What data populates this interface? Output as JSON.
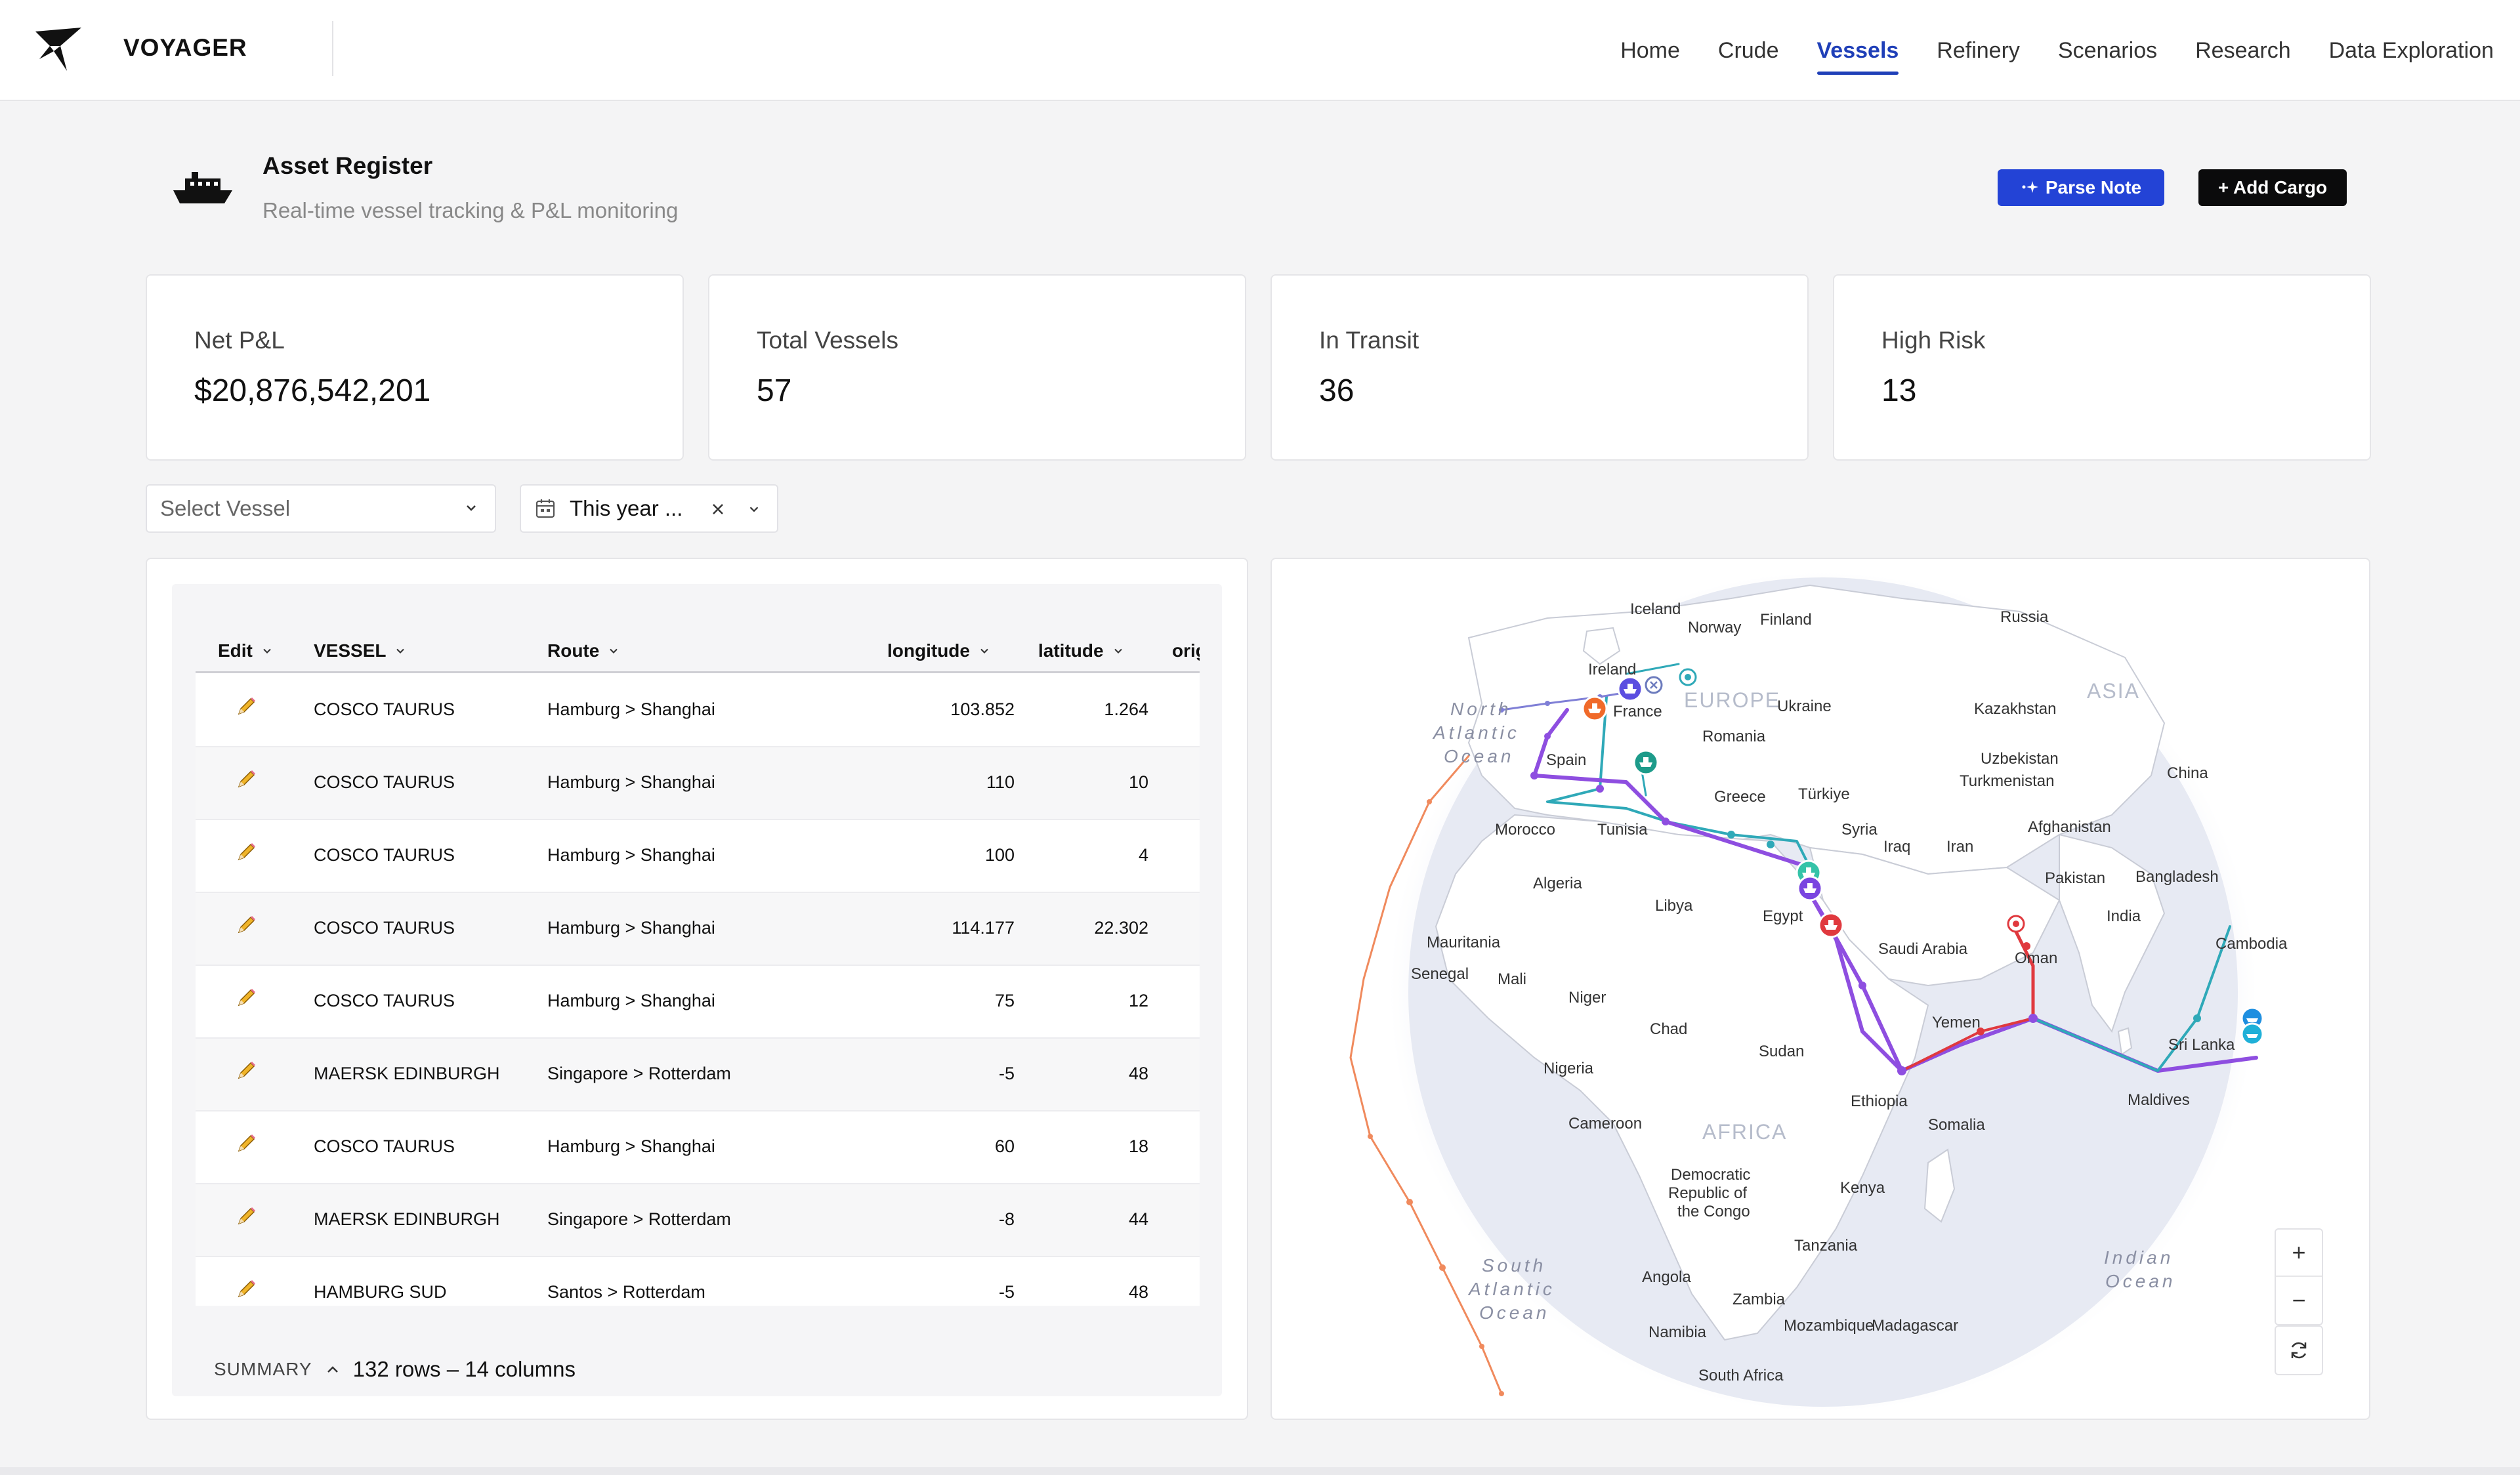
{
  "app": {
    "brand": "VOYAGER"
  },
  "nav": [
    {
      "label": "Home",
      "active": false
    },
    {
      "label": "Crude",
      "active": false
    },
    {
      "label": "Vessels",
      "active": true
    },
    {
      "label": "Refinery",
      "active": false
    },
    {
      "label": "Scenarios",
      "active": false
    },
    {
      "label": "Research",
      "active": false
    },
    {
      "label": "Data Exploration",
      "active": false
    }
  ],
  "header": {
    "title": "Asset Register",
    "subtitle": "Real-time vessel tracking & P&L monitoring",
    "parse_note_label": "Parse Note",
    "add_cargo_label": "+ Add Cargo"
  },
  "kpis": [
    {
      "label": "Net P&L",
      "value": "$20,876,542,201"
    },
    {
      "label": "Total Vessels",
      "value": "57"
    },
    {
      "label": "In Transit",
      "value": "36"
    },
    {
      "label": "High Risk",
      "value": "13"
    }
  ],
  "filters": {
    "vessel_placeholder": "Select Vessel",
    "date_value": "This year ..."
  },
  "table": {
    "columns": [
      "Edit",
      "VESSEL",
      "Route",
      "longitude",
      "latitude",
      "orig"
    ],
    "rows": [
      {
        "vessel": "COSCO TAURUS",
        "route": "Hamburg > Shanghai",
        "longitude": "103.852",
        "latitude": "1.264"
      },
      {
        "vessel": "COSCO TAURUS",
        "route": "Hamburg > Shanghai",
        "longitude": "110",
        "latitude": "10"
      },
      {
        "vessel": "COSCO TAURUS",
        "route": "Hamburg > Shanghai",
        "longitude": "100",
        "latitude": "4"
      },
      {
        "vessel": "COSCO TAURUS",
        "route": "Hamburg > Shanghai",
        "longitude": "114.177",
        "latitude": "22.302"
      },
      {
        "vessel": "COSCO TAURUS",
        "route": "Hamburg > Shanghai",
        "longitude": "75",
        "latitude": "12"
      },
      {
        "vessel": "MAERSK EDINBURGH",
        "route": "Singapore > Rotterdam",
        "longitude": "-5",
        "latitude": "48"
      },
      {
        "vessel": "COSCO TAURUS",
        "route": "Hamburg > Shanghai",
        "longitude": "60",
        "latitude": "18"
      },
      {
        "vessel": "MAERSK EDINBURGH",
        "route": "Singapore > Rotterdam",
        "longitude": "-8",
        "latitude": "44"
      },
      {
        "vessel": "HAMBURG SUD",
        "route": "Santos > Rotterdam",
        "longitude": "-5",
        "latitude": "48"
      }
    ],
    "summary_label": "SUMMARY",
    "summary_count": "132 rows – 14 columns"
  },
  "map": {
    "labels": {
      "iceland": "Iceland",
      "norway": "Norway",
      "finland": "Finland",
      "russia": "Russia",
      "ireland": "Ireland",
      "france": "France",
      "europe": "EUROPE",
      "ukraine": "Ukraine",
      "asia": "ASIA",
      "kazakhstan": "Kazakhstan",
      "romania": "Romania",
      "spain": "Spain",
      "uzbekistan": "Uzbekistan",
      "turkmenistan": "Turkmenistan",
      "greece": "Greece",
      "turkiye": "Türkiye",
      "china": "China",
      "morocco": "Morocco",
      "tunisia": "Tunisia",
      "syria": "Syria",
      "iraq": "Iraq",
      "iran": "Iran",
      "afghanistan": "Afghanistan",
      "pakistan": "Pakistan",
      "bangladesh": "Bangladesh",
      "algeria": "Algeria",
      "libya": "Libya",
      "egypt": "Egypt",
      "india": "India",
      "saudi_arabia": "Saudi Arabia",
      "oman": "Oman",
      "cambodia": "Cambodia",
      "mauritania": "Mauritania",
      "senegal": "Senegal",
      "mali": "Mali",
      "niger": "Niger",
      "chad": "Chad",
      "sudan": "Sudan",
      "yemen": "Yemen",
      "sri_lanka": "Sri Lanka",
      "nigeria": "Nigeria",
      "ethiopia": "Ethiopia",
      "maldives": "Maldives",
      "cameroon": "Cameroon",
      "somalia": "Somalia",
      "africa": "AFRICA",
      "drc1": "Democratic",
      "drc2": "Republic of",
      "drc3": "the Congo",
      "kenya": "Kenya",
      "tanzania": "Tanzania",
      "angola": "Angola",
      "zambia": "Zambia",
      "mozambique": "Mozambique",
      "madagascar": "Madagascar",
      "namibia": "Namibia",
      "south_africa": "South Africa",
      "na_ocean_1": "North",
      "na_ocean_2": "Atlantic",
      "na_ocean_3": "Ocean",
      "sa_ocean_1": "South",
      "sa_ocean_2": "Atlantic",
      "sa_ocean_3": "Ocean",
      "in_ocean_1": "Indian",
      "in_ocean_2": "Ocean"
    },
    "zoom_in": "+",
    "zoom_out": "−"
  },
  "colors": {
    "accent": "#1f3fb8",
    "parse_button": "#2343d6",
    "route_purple": "#8e4ee0",
    "route_teal": "#2fa9b8",
    "route_orange": "#f08a5d",
    "risk_red": "#e0393e"
  },
  "icons": [
    "voyager-logo-icon",
    "ship-icon",
    "sparkle-icon",
    "calendar-icon",
    "clear-icon",
    "chevron-down-icon",
    "pencil-icon",
    "caret-up-icon",
    "refresh-icon"
  ]
}
